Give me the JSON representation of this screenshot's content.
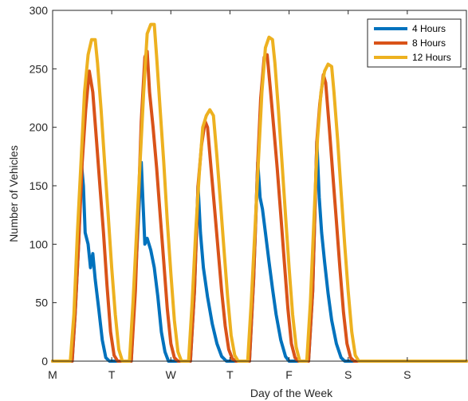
{
  "chart_data": {
    "type": "line",
    "xlabel": "Day of the Week",
    "ylabel": "Number of Vehicles",
    "xlim": [
      0,
      7
    ],
    "ylim": [
      0,
      300
    ],
    "x_ticks": [
      0,
      1,
      2,
      3,
      4,
      5,
      6
    ],
    "x_tick_labels": [
      "M",
      "T",
      "W",
      "T",
      "F",
      "S",
      "S"
    ],
    "y_ticks": [
      0,
      50,
      100,
      150,
      200,
      250,
      300
    ],
    "y_tick_labels": [
      "0",
      "50",
      "100",
      "150",
      "200",
      "250",
      "300"
    ],
    "grid": false,
    "legend_position": "top-right",
    "series": [
      {
        "name": "4 Hours",
        "color": "#0072bd",
        "points": [
          [
            0,
            0
          ],
          [
            0.33,
            0
          ],
          [
            0.38,
            40
          ],
          [
            0.44,
            100
          ],
          [
            0.49,
            168
          ],
          [
            0.52,
            150
          ],
          [
            0.55,
            110
          ],
          [
            0.6,
            100
          ],
          [
            0.64,
            80
          ],
          [
            0.68,
            92
          ],
          [
            0.72,
            70
          ],
          [
            0.78,
            45
          ],
          [
            0.84,
            18
          ],
          [
            0.9,
            3
          ],
          [
            0.96,
            0
          ],
          [
            1.33,
            0
          ],
          [
            1.42,
            90
          ],
          [
            1.5,
            170
          ],
          [
            1.53,
            135
          ],
          [
            1.56,
            100
          ],
          [
            1.6,
            105
          ],
          [
            1.66,
            95
          ],
          [
            1.72,
            80
          ],
          [
            1.78,
            55
          ],
          [
            1.84,
            25
          ],
          [
            1.9,
            8
          ],
          [
            1.96,
            0
          ],
          [
            2.33,
            0
          ],
          [
            2.4,
            60
          ],
          [
            2.46,
            150
          ],
          [
            2.5,
            110
          ],
          [
            2.55,
            80
          ],
          [
            2.62,
            55
          ],
          [
            2.7,
            32
          ],
          [
            2.78,
            15
          ],
          [
            2.86,
            4
          ],
          [
            2.94,
            0
          ],
          [
            3.33,
            0
          ],
          [
            3.4,
            70
          ],
          [
            3.47,
            170
          ],
          [
            3.51,
            140
          ],
          [
            3.55,
            130
          ],
          [
            3.6,
            110
          ],
          [
            3.66,
            85
          ],
          [
            3.72,
            62
          ],
          [
            3.78,
            40
          ],
          [
            3.86,
            18
          ],
          [
            3.94,
            4
          ],
          [
            4.0,
            0
          ],
          [
            4.33,
            0
          ],
          [
            4.4,
            60
          ],
          [
            4.47,
            188
          ],
          [
            4.51,
            140
          ],
          [
            4.55,
            110
          ],
          [
            4.6,
            85
          ],
          [
            4.66,
            58
          ],
          [
            4.72,
            35
          ],
          [
            4.8,
            15
          ],
          [
            4.88,
            3
          ],
          [
            4.94,
            0
          ],
          [
            7,
            0
          ]
        ]
      },
      {
        "name": "8 Hours",
        "color": "#d95319",
        "points": [
          [
            0,
            0
          ],
          [
            0.33,
            0
          ],
          [
            0.38,
            40
          ],
          [
            0.44,
            100
          ],
          [
            0.5,
            170
          ],
          [
            0.56,
            215
          ],
          [
            0.62,
            248
          ],
          [
            0.68,
            230
          ],
          [
            0.74,
            190
          ],
          [
            0.8,
            150
          ],
          [
            0.86,
            110
          ],
          [
            0.92,
            65
          ],
          [
            0.98,
            25
          ],
          [
            1.04,
            5
          ],
          [
            1.1,
            0
          ],
          [
            1.33,
            0
          ],
          [
            1.4,
            60
          ],
          [
            1.46,
            145
          ],
          [
            1.5,
            205
          ],
          [
            1.56,
            260
          ],
          [
            1.6,
            265
          ],
          [
            1.64,
            230
          ],
          [
            1.7,
            200
          ],
          [
            1.76,
            165
          ],
          [
            1.82,
            125
          ],
          [
            1.88,
            85
          ],
          [
            1.94,
            45
          ],
          [
            2.0,
            15
          ],
          [
            2.06,
            3
          ],
          [
            2.12,
            0
          ],
          [
            2.33,
            0
          ],
          [
            2.4,
            60
          ],
          [
            2.46,
            150
          ],
          [
            2.52,
            185
          ],
          [
            2.58,
            205
          ],
          [
            2.62,
            200
          ],
          [
            2.68,
            165
          ],
          [
            2.74,
            130
          ],
          [
            2.8,
            95
          ],
          [
            2.86,
            60
          ],
          [
            2.92,
            30
          ],
          [
            2.98,
            10
          ],
          [
            3.04,
            2
          ],
          [
            3.1,
            0
          ],
          [
            3.33,
            0
          ],
          [
            3.4,
            70
          ],
          [
            3.47,
            170
          ],
          [
            3.52,
            225
          ],
          [
            3.58,
            260
          ],
          [
            3.63,
            262
          ],
          [
            3.68,
            235
          ],
          [
            3.74,
            200
          ],
          [
            3.8,
            165
          ],
          [
            3.86,
            125
          ],
          [
            3.92,
            85
          ],
          [
            3.98,
            45
          ],
          [
            4.04,
            15
          ],
          [
            4.1,
            3
          ],
          [
            4.16,
            0
          ],
          [
            4.33,
            0
          ],
          [
            4.4,
            60
          ],
          [
            4.47,
            188
          ],
          [
            4.52,
            220
          ],
          [
            4.58,
            245
          ],
          [
            4.62,
            238
          ],
          [
            4.68,
            200
          ],
          [
            4.74,
            160
          ],
          [
            4.8,
            120
          ],
          [
            4.86,
            80
          ],
          [
            4.92,
            42
          ],
          [
            4.98,
            15
          ],
          [
            5.04,
            3
          ],
          [
            5.1,
            0
          ],
          [
            7,
            0
          ]
        ]
      },
      {
        "name": "12 Hours",
        "color": "#edb120",
        "points": [
          [
            0,
            0
          ],
          [
            0.3,
            0
          ],
          [
            0.36,
            40
          ],
          [
            0.42,
            110
          ],
          [
            0.48,
            170
          ],
          [
            0.54,
            230
          ],
          [
            0.6,
            262
          ],
          [
            0.66,
            275
          ],
          [
            0.72,
            275
          ],
          [
            0.76,
            255
          ],
          [
            0.82,
            215
          ],
          [
            0.88,
            170
          ],
          [
            0.94,
            125
          ],
          [
            1.0,
            80
          ],
          [
            1.06,
            40
          ],
          [
            1.12,
            10
          ],
          [
            1.18,
            0
          ],
          [
            1.3,
            0
          ],
          [
            1.36,
            50
          ],
          [
            1.42,
            110
          ],
          [
            1.48,
            170
          ],
          [
            1.54,
            230
          ],
          [
            1.6,
            280
          ],
          [
            1.66,
            288
          ],
          [
            1.72,
            288
          ],
          [
            1.76,
            260
          ],
          [
            1.82,
            215
          ],
          [
            1.88,
            170
          ],
          [
            1.94,
            120
          ],
          [
            2.0,
            75
          ],
          [
            2.06,
            35
          ],
          [
            2.12,
            8
          ],
          [
            2.18,
            0
          ],
          [
            2.3,
            0
          ],
          [
            2.36,
            50
          ],
          [
            2.42,
            110
          ],
          [
            2.48,
            160
          ],
          [
            2.54,
            200
          ],
          [
            2.6,
            210
          ],
          [
            2.66,
            215
          ],
          [
            2.72,
            210
          ],
          [
            2.78,
            175
          ],
          [
            2.84,
            135
          ],
          [
            2.9,
            95
          ],
          [
            2.96,
            55
          ],
          [
            3.02,
            22
          ],
          [
            3.08,
            5
          ],
          [
            3.14,
            0
          ],
          [
            3.3,
            0
          ],
          [
            3.36,
            50
          ],
          [
            3.42,
            110
          ],
          [
            3.48,
            170
          ],
          [
            3.54,
            230
          ],
          [
            3.6,
            268
          ],
          [
            3.66,
            277
          ],
          [
            3.72,
            275
          ],
          [
            3.76,
            255
          ],
          [
            3.82,
            215
          ],
          [
            3.88,
            170
          ],
          [
            3.94,
            125
          ],
          [
            4.0,
            80
          ],
          [
            4.06,
            40
          ],
          [
            4.12,
            12
          ],
          [
            4.18,
            0
          ],
          [
            4.3,
            0
          ],
          [
            4.36,
            50
          ],
          [
            4.42,
            120
          ],
          [
            4.48,
            190
          ],
          [
            4.54,
            230
          ],
          [
            4.6,
            248
          ],
          [
            4.66,
            254
          ],
          [
            4.72,
            252
          ],
          [
            4.76,
            230
          ],
          [
            4.82,
            190
          ],
          [
            4.88,
            145
          ],
          [
            4.94,
            100
          ],
          [
            5.0,
            60
          ],
          [
            5.06,
            25
          ],
          [
            5.12,
            5
          ],
          [
            5.18,
            0
          ],
          [
            7,
            0
          ]
        ]
      }
    ]
  }
}
